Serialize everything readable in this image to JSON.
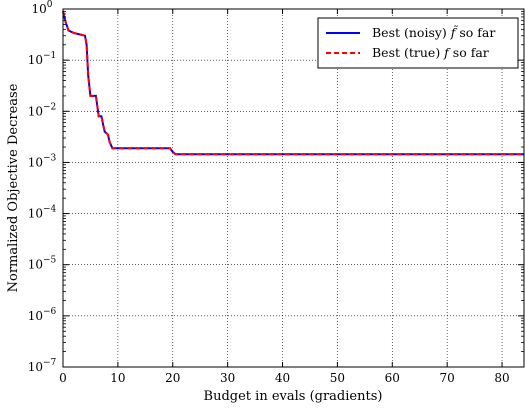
{
  "chart_data": {
    "type": "line",
    "xlabel": "Budget in evals (gradients)",
    "ylabel": "Normalized Objective Decrease",
    "xlim": [
      0,
      84
    ],
    "ylim_exp": [
      -7,
      0
    ],
    "yscale": "log",
    "grid": true,
    "legend_placement": "top-right",
    "x_ticks": [
      0,
      10,
      20,
      30,
      40,
      50,
      60,
      70,
      80
    ],
    "y_tick_exponents": [
      -7,
      -6,
      -5,
      -4,
      -3,
      -2,
      -1,
      0
    ],
    "y_tick_base": "10",
    "series": [
      {
        "name": "Best (noisy)",
        "legend_math": "f̃",
        "legend_suffix": "so far",
        "color": "#0000ff",
        "style": "solid",
        "points": [
          [
            0,
            0.9
          ],
          [
            0.5,
            0.55
          ],
          [
            1,
            0.38
          ],
          [
            2,
            0.34
          ],
          [
            3.5,
            0.31
          ],
          [
            4,
            0.3
          ],
          [
            4.3,
            0.2
          ],
          [
            4.6,
            0.05
          ],
          [
            5,
            0.02
          ],
          [
            6,
            0.02
          ],
          [
            6.5,
            0.008
          ],
          [
            7,
            0.008
          ],
          [
            7.3,
            0.0055
          ],
          [
            7.6,
            0.004
          ],
          [
            8.2,
            0.0035
          ],
          [
            8.5,
            0.0025
          ],
          [
            9,
            0.0019
          ],
          [
            19.5,
            0.0019
          ],
          [
            20,
            0.0016
          ],
          [
            20.5,
            0.00145
          ],
          [
            84,
            0.00145
          ]
        ]
      },
      {
        "name": "Best (true)",
        "legend_math": "f",
        "legend_suffix": "so far",
        "color": "#ff0000",
        "style": "dashed",
        "points": [
          [
            0,
            0.9
          ],
          [
            0.5,
            0.55
          ],
          [
            1,
            0.38
          ],
          [
            2,
            0.34
          ],
          [
            3.5,
            0.31
          ],
          [
            4,
            0.3
          ],
          [
            4.3,
            0.2
          ],
          [
            4.6,
            0.05
          ],
          [
            5,
            0.02
          ],
          [
            6,
            0.02
          ],
          [
            6.5,
            0.008
          ],
          [
            7,
            0.008
          ],
          [
            7.3,
            0.0055
          ],
          [
            7.6,
            0.004
          ],
          [
            8.2,
            0.0035
          ],
          [
            8.5,
            0.0025
          ],
          [
            9,
            0.0019
          ],
          [
            19.5,
            0.0019
          ],
          [
            20,
            0.0016
          ],
          [
            20.5,
            0.00145
          ],
          [
            84,
            0.00145
          ]
        ]
      }
    ]
  }
}
